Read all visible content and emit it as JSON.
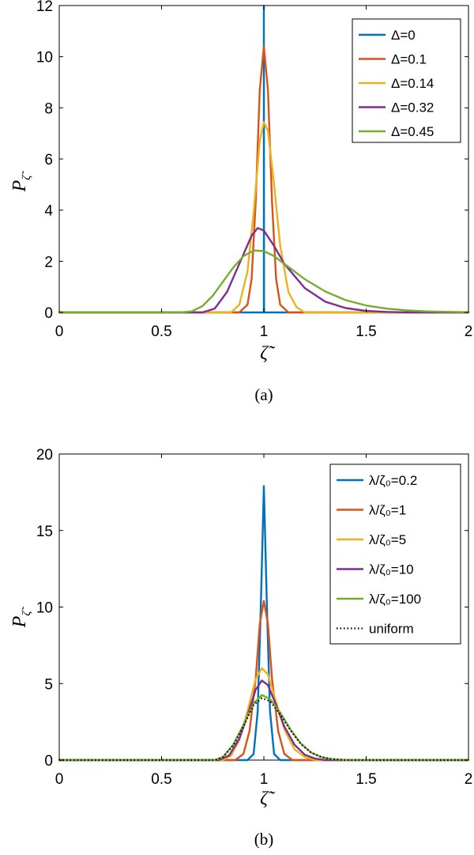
{
  "figure": {
    "panels": [
      {
        "caption": "(a)",
        "xlabel": "ζ̃",
        "ylabel": "P",
        "ylabel_sub": "ζ̃"
      },
      {
        "caption": "(b)",
        "xlabel": "ζ̃",
        "ylabel": "P",
        "ylabel_sub": "ζ̃"
      }
    ]
  },
  "chart_data": [
    {
      "type": "line",
      "title": "",
      "caption": "(a)",
      "xlabel": "ζ̃",
      "ylabel": "P_ζ̃",
      "xlim": [
        0,
        2
      ],
      "ylim": [
        0,
        12
      ],
      "xticks": [
        0,
        0.5,
        1,
        1.5,
        2
      ],
      "xtick_labels": [
        "0",
        "0.5",
        "1",
        "1.5",
        "2"
      ],
      "yticks": [
        0,
        2,
        4,
        6,
        8,
        10,
        12
      ],
      "ytick_labels": [
        "0",
        "2",
        "4",
        "6",
        "8",
        "10",
        "12"
      ],
      "legend_position": "top-right",
      "series": [
        {
          "name": "Δ=0",
          "color": "#0072BD",
          "style": "solid",
          "x": [
            0,
            0.999,
            1.0,
            1.0,
            1.001,
            2
          ],
          "y": [
            0,
            0,
            0,
            12,
            0,
            0
          ]
        },
        {
          "name": "Δ=0.1",
          "color": "#D95319",
          "style": "solid",
          "x": [
            0,
            0.88,
            0.92,
            0.94,
            0.96,
            0.98,
            1.0,
            1.02,
            1.04,
            1.06,
            1.08,
            1.12,
            2
          ],
          "y": [
            0,
            0,
            0.3,
            1.3,
            4.3,
            8.7,
            10.4,
            8.7,
            4.3,
            1.3,
            0.3,
            0,
            0
          ]
        },
        {
          "name": "Δ=0.14",
          "color": "#EDB120",
          "style": "solid",
          "x": [
            0,
            0.84,
            0.88,
            0.92,
            0.95,
            0.98,
            1.0,
            1.02,
            1.05,
            1.08,
            1.12,
            1.16,
            1.2,
            2
          ],
          "y": [
            0,
            0,
            0.3,
            1.6,
            3.9,
            6.7,
            7.45,
            7.1,
            5.0,
            2.6,
            0.8,
            0.2,
            0,
            0
          ]
        },
        {
          "name": "Δ=0.32",
          "color": "#7E2F8E",
          "style": "solid",
          "x": [
            0,
            0.7,
            0.76,
            0.82,
            0.88,
            0.94,
            0.97,
            1.0,
            1.05,
            1.1,
            1.2,
            1.3,
            1.4,
            1.5,
            1.6,
            1.7,
            2
          ],
          "y": [
            0,
            0,
            0.15,
            0.8,
            1.9,
            3.0,
            3.3,
            3.2,
            2.6,
            1.9,
            0.95,
            0.42,
            0.17,
            0.06,
            0.02,
            0,
            0
          ]
        },
        {
          "name": "Δ=0.45",
          "color": "#77AC30",
          "style": "solid",
          "x": [
            0,
            0.6,
            0.65,
            0.7,
            0.75,
            0.8,
            0.85,
            0.9,
            0.95,
            1.0,
            1.05,
            1.1,
            1.2,
            1.3,
            1.4,
            1.5,
            1.6,
            1.7,
            1.8,
            1.9,
            2
          ],
          "y": [
            0,
            0,
            0.05,
            0.25,
            0.65,
            1.2,
            1.75,
            2.2,
            2.42,
            2.4,
            2.2,
            1.9,
            1.3,
            0.82,
            0.48,
            0.27,
            0.15,
            0.08,
            0.04,
            0.02,
            0.01
          ]
        }
      ]
    },
    {
      "type": "line",
      "title": "",
      "caption": "(b)",
      "xlabel": "ζ̃",
      "ylabel": "P_ζ̃",
      "xlim": [
        0,
        2
      ],
      "ylim": [
        0,
        20
      ],
      "xticks": [
        0,
        0.5,
        1,
        1.5,
        2
      ],
      "xtick_labels": [
        "0",
        "0.5",
        "1",
        "1.5",
        "2"
      ],
      "yticks": [
        0,
        5,
        10,
        15,
        20
      ],
      "ytick_labels": [
        "0",
        "5",
        "10",
        "15",
        "20"
      ],
      "legend_position": "top-right",
      "series": [
        {
          "name": "λ/ζ₀=0.2",
          "color": "#0072BD",
          "style": "solid",
          "x": [
            0,
            0.92,
            0.95,
            0.97,
            0.985,
            1.0,
            1.015,
            1.03,
            1.05,
            1.08,
            2
          ],
          "y": [
            0,
            0,
            0.4,
            3.2,
            10.0,
            17.9,
            10.0,
            3.2,
            0.4,
            0,
            0
          ]
        },
        {
          "name": "λ/ζ₀=1",
          "color": "#D95319",
          "style": "solid",
          "x": [
            0,
            0.86,
            0.9,
            0.93,
            0.96,
            0.98,
            1.0,
            1.02,
            1.04,
            1.07,
            1.1,
            1.14,
            2
          ],
          "y": [
            0,
            0,
            0.4,
            1.9,
            5.3,
            8.9,
            10.4,
            8.9,
            5.3,
            1.9,
            0.4,
            0,
            0
          ]
        },
        {
          "name": "λ/ζ₀=5",
          "color": "#EDB120",
          "style": "solid",
          "x": [
            0,
            0.8,
            0.84,
            0.88,
            0.92,
            0.96,
            0.99,
            1.02,
            1.06,
            1.1,
            1.15,
            1.2,
            1.25,
            2
          ],
          "y": [
            0,
            0,
            0.3,
            1.3,
            3.2,
            5.3,
            6.0,
            5.6,
            3.8,
            2.0,
            0.7,
            0.2,
            0,
            0
          ]
        },
        {
          "name": "λ/ζ₀=10",
          "color": "#7E2F8E",
          "style": "solid",
          "x": [
            0,
            0.78,
            0.83,
            0.88,
            0.92,
            0.96,
            0.99,
            1.02,
            1.06,
            1.1,
            1.15,
            1.2,
            1.25,
            1.3,
            2
          ],
          "y": [
            0,
            0,
            0.3,
            1.4,
            2.9,
            4.6,
            5.2,
            4.9,
            3.6,
            2.2,
            1.0,
            0.35,
            0.1,
            0,
            0
          ]
        },
        {
          "name": "λ/ζ₀=100",
          "color": "#77AC30",
          "style": "solid",
          "x": [
            0,
            0.76,
            0.8,
            0.85,
            0.9,
            0.95,
            0.99,
            1.03,
            1.08,
            1.13,
            1.18,
            1.23,
            1.28,
            1.33,
            1.4,
            2
          ],
          "y": [
            0,
            0,
            0.2,
            1.0,
            2.3,
            3.7,
            4.25,
            4.0,
            3.1,
            2.0,
            1.1,
            0.5,
            0.2,
            0.07,
            0,
            0
          ]
        },
        {
          "name": "uniform",
          "color": "#000000",
          "style": "dotted",
          "x": [
            0,
            0.76,
            0.8,
            0.85,
            0.9,
            0.95,
            0.99,
            1.03,
            1.08,
            1.13,
            1.18,
            1.23,
            1.28,
            1.33,
            1.4,
            2
          ],
          "y": [
            0,
            0,
            0.2,
            0.95,
            2.2,
            3.6,
            4.05,
            3.85,
            3.0,
            1.95,
            1.05,
            0.5,
            0.2,
            0.07,
            0,
            0
          ]
        }
      ]
    }
  ]
}
